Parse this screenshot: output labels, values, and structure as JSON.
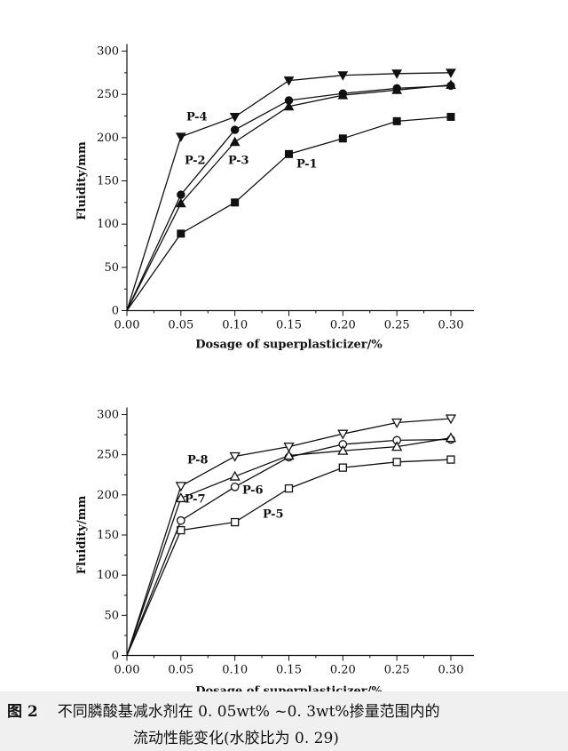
{
  "chart_data": [
    {
      "type": "line",
      "title": "",
      "xlabel": "Dosage of superplasticizer/%",
      "ylabel": "Fluidity/mm",
      "xlim": [
        0,
        0.3
      ],
      "ylim": [
        0,
        300
      ],
      "x_ticks": [
        "0.00",
        "0.05",
        "0.10",
        "0.15",
        "0.20",
        "0.25",
        "0.30"
      ],
      "y_ticks": [
        "0",
        "50",
        "100",
        "150",
        "200",
        "250",
        "300"
      ],
      "grid": false,
      "x": [
        0,
        0.05,
        0.1,
        0.15,
        0.2,
        0.25,
        0.3
      ],
      "series": [
        {
          "name": "P-1",
          "marker": "filled-square",
          "values": [
            0,
            89,
            125,
            181,
            199,
            219,
            224
          ]
        },
        {
          "name": "P-2",
          "marker": "filled-circle",
          "values": [
            0,
            134,
            209,
            243,
            251,
            257,
            260
          ]
        },
        {
          "name": "P-3",
          "marker": "filled-triangle-up",
          "values": [
            0,
            124,
            195,
            236,
            249,
            255,
            261
          ]
        },
        {
          "name": "P-4",
          "marker": "filled-triangle-down",
          "values": [
            0,
            201,
            224,
            266,
            272,
            274,
            275
          ]
        }
      ]
    },
    {
      "type": "line",
      "title": "",
      "xlabel": "Dosage of superplasticizer/%",
      "ylabel": "Fluidity/mm",
      "xlim": [
        0,
        0.3
      ],
      "ylim": [
        0,
        300
      ],
      "x_ticks": [
        "0.00",
        "0.05",
        "0.10",
        "0.15",
        "0.20",
        "0.25",
        "0.30"
      ],
      "y_ticks": [
        "0",
        "50",
        "100",
        "150",
        "200",
        "250",
        "300"
      ],
      "grid": false,
      "x": [
        0,
        0.05,
        0.1,
        0.15,
        0.2,
        0.25,
        0.3
      ],
      "series": [
        {
          "name": "P-5",
          "marker": "open-square",
          "values": [
            0,
            156,
            166,
            208,
            234,
            241,
            244
          ]
        },
        {
          "name": "P-6",
          "marker": "open-circle",
          "values": [
            0,
            168,
            210,
            247,
            263,
            268,
            269
          ]
        },
        {
          "name": "P-7",
          "marker": "open-triangle-up",
          "values": [
            0,
            196,
            223,
            249,
            255,
            260,
            271
          ]
        },
        {
          "name": "P-8",
          "marker": "open-triangle-down",
          "values": [
            0,
            211,
            248,
            260,
            276,
            290,
            295
          ]
        }
      ]
    }
  ],
  "caption": {
    "figure_number": "图 2",
    "line1": "不同膦酸基减水剂在 0. 05wt% ~0. 3wt%掺量范围内的",
    "line2": "流动性能变化(水胶比为 0. 29)"
  }
}
